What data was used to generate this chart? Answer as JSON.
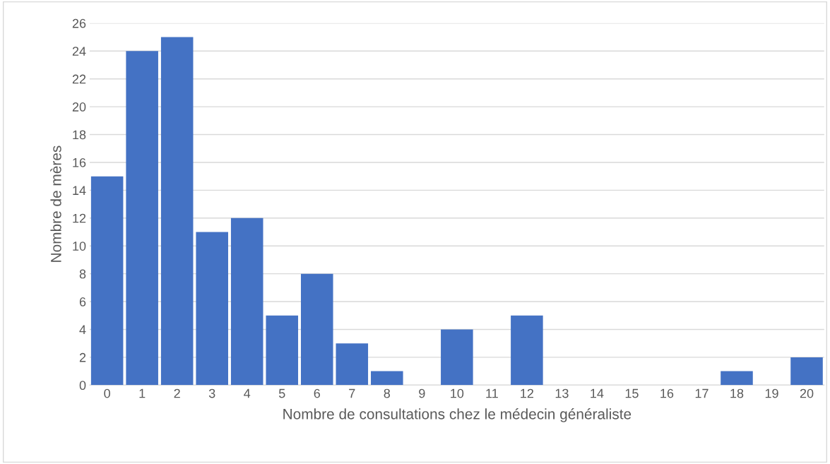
{
  "chart_data": {
    "type": "bar",
    "xlabel": "Nombre de consultations chez le médecin généraliste",
    "ylabel": "Nombre de mères",
    "categories": [
      "0",
      "1",
      "2",
      "3",
      "4",
      "5",
      "6",
      "7",
      "8",
      "9",
      "10",
      "11",
      "12",
      "13",
      "14",
      "15",
      "16",
      "17",
      "18",
      "19",
      "20"
    ],
    "values": [
      15,
      24,
      25,
      11,
      12,
      5,
      8,
      3,
      1,
      0,
      4,
      0,
      5,
      0,
      0,
      0,
      0,
      0,
      1,
      0,
      2
    ],
    "color": "#4472c4",
    "ylim": [
      0,
      26
    ],
    "yticks": [
      0,
      2,
      4,
      6,
      8,
      10,
      12,
      14,
      16,
      18,
      20,
      22,
      24,
      26
    ],
    "grid": "y"
  }
}
